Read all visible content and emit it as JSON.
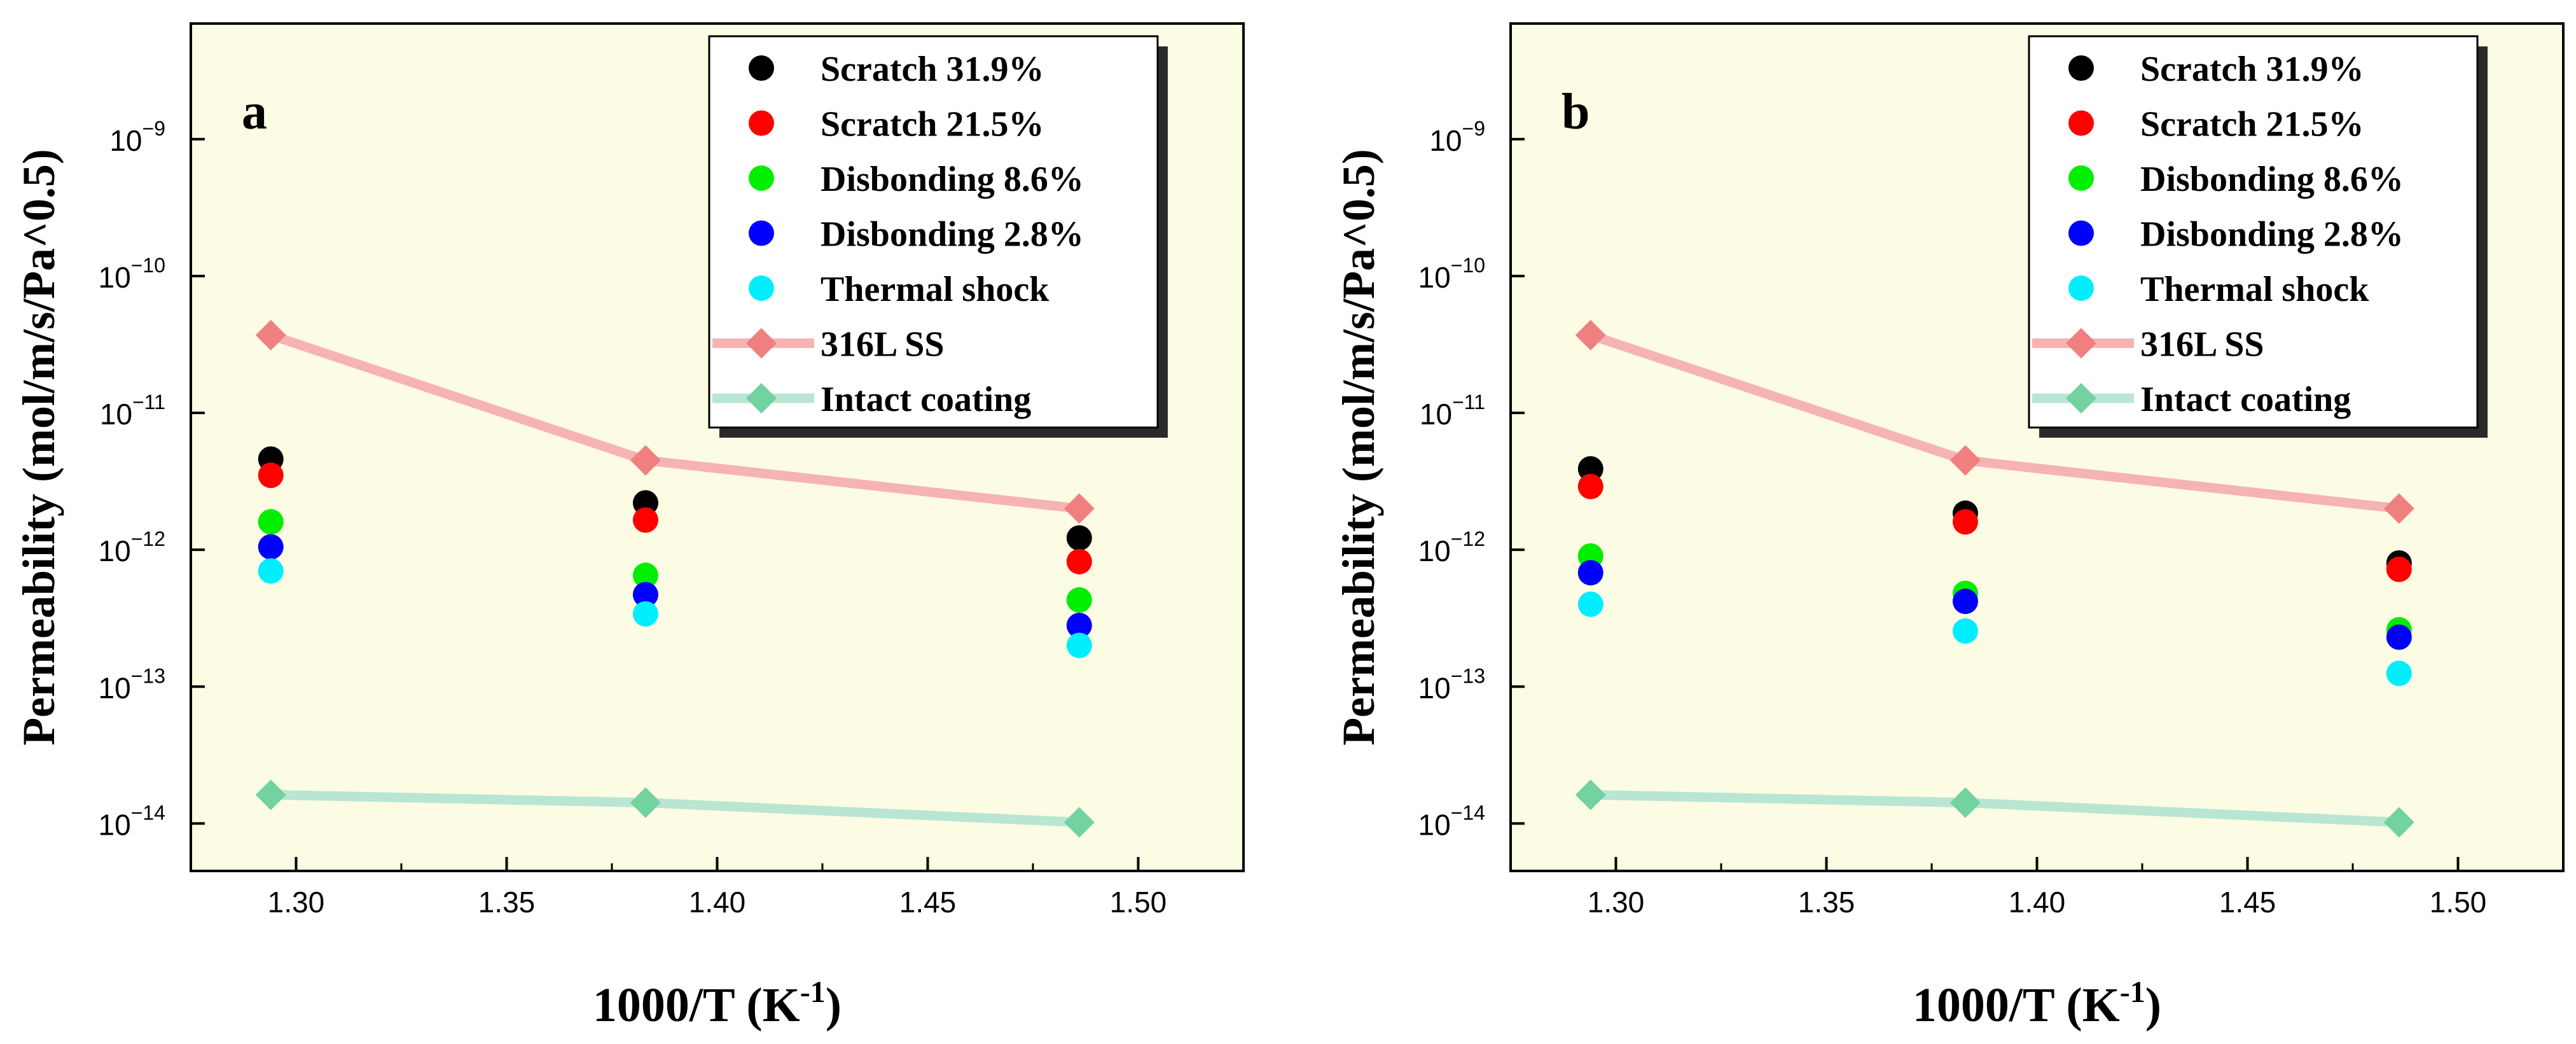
{
  "chart_data": [
    {
      "type": "scatter",
      "panel_label": "a",
      "xlabel": "1000/T (K",
      "xlabel_sup": "-1",
      "xlabel_suffix": ")",
      "ylabel": "Permeability (mol/m/s/Pa^0.5)",
      "x_scale": "linear",
      "y_scale": "log",
      "xlim": [
        1.275,
        1.525
      ],
      "ylim": [
        4.5e-15,
        7e-09
      ],
      "x_ticks": [
        1.3,
        1.35,
        1.4,
        1.45,
        1.5
      ],
      "x_tick_labels": [
        "1.30",
        "1.35",
        "1.40",
        "1.45",
        "1.50"
      ],
      "y_ticks_exp": [
        -14,
        -13,
        -12,
        -11,
        -10,
        -9
      ],
      "y_tick_base": "10",
      "legend_position": "top-right",
      "series": [
        {
          "name": "Scratch 31.9%",
          "color": "#000000",
          "marker": "circle",
          "line": false,
          "x": [
            1.294,
            1.383,
            1.486
          ],
          "y": [
            4.6e-12,
            2.2e-12,
            1.22e-12
          ]
        },
        {
          "name": "Scratch 21.5%",
          "color": "#ff0000",
          "marker": "circle",
          "line": false,
          "x": [
            1.294,
            1.383,
            1.486
          ],
          "y": [
            3.5e-12,
            1.65e-12,
            8.2e-13
          ]
        },
        {
          "name": "Disbonding 8.6%",
          "color": "#00ee00",
          "marker": "circle",
          "line": false,
          "x": [
            1.294,
            1.383,
            1.486
          ],
          "y": [
            1.6e-12,
            6.5e-13,
            4.3e-13
          ]
        },
        {
          "name": "Disbonding 2.8%",
          "color": "#0000ff",
          "marker": "circle",
          "line": false,
          "x": [
            1.294,
            1.383,
            1.486
          ],
          "y": [
            1.05e-12,
            4.7e-13,
            2.8e-13
          ]
        },
        {
          "name": "Thermal shock",
          "color": "#00eeff",
          "marker": "circle",
          "line": false,
          "x": [
            1.294,
            1.383,
            1.486
          ],
          "y": [
            7e-13,
            3.4e-13,
            2e-13
          ]
        },
        {
          "name": "316L SS",
          "color": "#f08080",
          "line_color": "#f6b3b3",
          "marker": "diamond",
          "line": true,
          "x": [
            1.294,
            1.383,
            1.486
          ],
          "y": [
            3.7e-11,
            4.5e-12,
            2e-12
          ]
        },
        {
          "name": "Intact coating",
          "color": "#72d2a0",
          "line_color": "#b8e6d2",
          "marker": "diamond",
          "line": true,
          "x": [
            1.294,
            1.383,
            1.486
          ],
          "y": [
            1.62e-14,
            1.42e-14,
            1.02e-14
          ]
        }
      ]
    },
    {
      "type": "scatter",
      "panel_label": "b",
      "xlabel": "1000/T (K",
      "xlabel_sup": "-1",
      "xlabel_suffix": ")",
      "ylabel": "Permeability (mol/m/s/Pa^0.5)",
      "x_scale": "linear",
      "y_scale": "log",
      "xlim": [
        1.275,
        1.525
      ],
      "ylim": [
        4.5e-15,
        7e-09
      ],
      "x_ticks": [
        1.3,
        1.35,
        1.4,
        1.45,
        1.5
      ],
      "x_tick_labels": [
        "1.30",
        "1.35",
        "1.40",
        "1.45",
        "1.50"
      ],
      "y_ticks_exp": [
        -14,
        -13,
        -12,
        -11,
        -10,
        -9
      ],
      "y_tick_base": "10",
      "legend_position": "top-right",
      "series": [
        {
          "name": "Scratch 31.9%",
          "color": "#000000",
          "marker": "circle",
          "line": false,
          "x": [
            1.294,
            1.383,
            1.486
          ],
          "y": [
            3.9e-12,
            1.85e-12,
            8e-13
          ]
        },
        {
          "name": "Scratch 21.5%",
          "color": "#ff0000",
          "marker": "circle",
          "line": false,
          "x": [
            1.294,
            1.383,
            1.486
          ],
          "y": [
            2.9e-12,
            1.6e-12,
            7.2e-13
          ]
        },
        {
          "name": "Disbonding 8.6%",
          "color": "#00ee00",
          "marker": "circle",
          "line": false,
          "x": [
            1.294,
            1.383,
            1.486
          ],
          "y": [
            9e-13,
            4.8e-13,
            2.6e-13
          ]
        },
        {
          "name": "Disbonding 2.8%",
          "color": "#0000ff",
          "marker": "circle",
          "line": false,
          "x": [
            1.294,
            1.383,
            1.486
          ],
          "y": [
            6.8e-13,
            4.2e-13,
            2.3e-13
          ]
        },
        {
          "name": "Thermal shock",
          "color": "#00eeff",
          "marker": "circle",
          "line": false,
          "x": [
            1.294,
            1.383,
            1.486
          ],
          "y": [
            4e-13,
            2.55e-13,
            1.25e-13
          ]
        },
        {
          "name": "316L SS",
          "color": "#f08080",
          "line_color": "#f6b3b3",
          "marker": "diamond",
          "line": true,
          "x": [
            1.294,
            1.383,
            1.486
          ],
          "y": [
            3.7e-11,
            4.5e-12,
            2e-12
          ]
        },
        {
          "name": "Intact coating",
          "color": "#72d2a0",
          "line_color": "#b8e6d2",
          "marker": "diamond",
          "line": true,
          "x": [
            1.294,
            1.383,
            1.486
          ],
          "y": [
            1.62e-14,
            1.42e-14,
            1.02e-14
          ]
        }
      ]
    }
  ],
  "style": {
    "plot_background": "#fcfbe4",
    "legend_background": "#ffffff",
    "legend_shadow": "#2a2a2a"
  }
}
